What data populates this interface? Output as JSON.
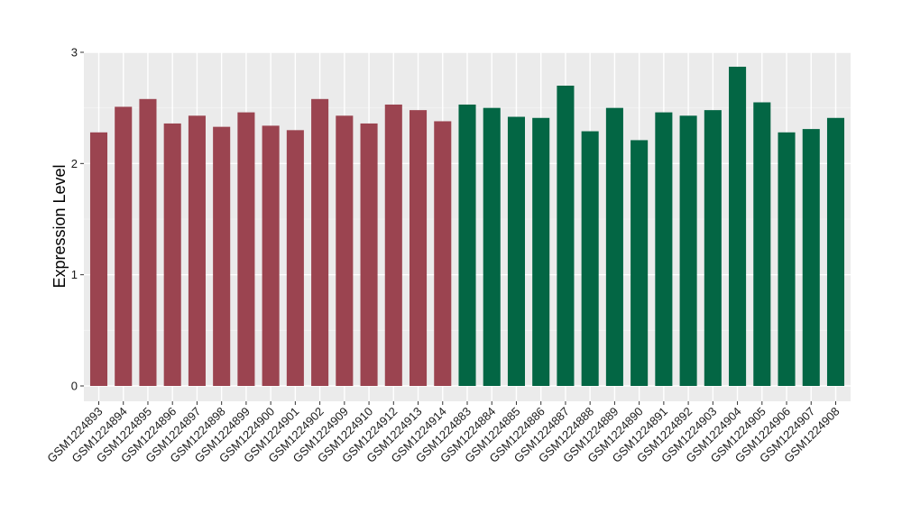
{
  "chart_data": {
    "type": "bar",
    "title": "",
    "xlabel": "",
    "ylabel": "Expression Level",
    "ylim": [
      0,
      3
    ],
    "yticks": [
      0,
      1,
      2,
      3
    ],
    "grid": true,
    "legend": "none",
    "categories": [
      "GSM1224893",
      "GSM1224894",
      "GSM1224895",
      "GSM1224896",
      "GSM1224897",
      "GSM1224898",
      "GSM1224899",
      "GSM1224900",
      "GSM1224901",
      "GSM1224902",
      "GSM1224909",
      "GSM1224910",
      "GSM1224912",
      "GSM1224913",
      "GSM1224914",
      "GSM1224883",
      "GSM1224884",
      "GSM1224885",
      "GSM1224886",
      "GSM1224887",
      "GSM1224888",
      "GSM1224889",
      "GSM1224890",
      "GSM1224891",
      "GSM1224892",
      "GSM1224903",
      "GSM1224904",
      "GSM1224905",
      "GSM1224906",
      "GSM1224907",
      "GSM1224908"
    ],
    "values": [
      2.28,
      2.51,
      2.58,
      2.36,
      2.43,
      2.33,
      2.46,
      2.34,
      2.3,
      2.58,
      2.43,
      2.36,
      2.53,
      2.48,
      2.38,
      2.53,
      2.5,
      2.42,
      2.41,
      2.7,
      2.29,
      2.5,
      2.21,
      2.46,
      2.43,
      2.48,
      2.87,
      2.55,
      2.28,
      2.31,
      2.41
    ],
    "bar_colors": [
      "#9b4450",
      "#9b4450",
      "#9b4450",
      "#9b4450",
      "#9b4450",
      "#9b4450",
      "#9b4450",
      "#9b4450",
      "#9b4450",
      "#9b4450",
      "#9b4450",
      "#9b4450",
      "#9b4450",
      "#9b4450",
      "#9b4450",
      "#036644",
      "#036644",
      "#036644",
      "#036644",
      "#036644",
      "#036644",
      "#036644",
      "#036644",
      "#036644",
      "#036644",
      "#036644",
      "#036644",
      "#036644",
      "#036644",
      "#036644",
      "#036644"
    ],
    "colors": {
      "panel_background": "#ebebeb",
      "grid_major": "#ffffff",
      "grid_minor": "#f5f5f5",
      "tick_color": "#333333"
    }
  }
}
